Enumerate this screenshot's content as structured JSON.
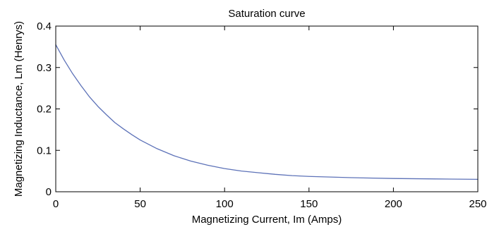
{
  "chart_data": {
    "type": "line",
    "title": "Saturation curve",
    "xlabel": "Magnetizing Current, Im (Amps)",
    "ylabel": "Magnetizing Inductance, Lm (Henrys)",
    "xlim": [
      0,
      250
    ],
    "ylim": [
      0,
      0.4
    ],
    "xticks": [
      0,
      50,
      100,
      150,
      200,
      250
    ],
    "xtick_labels": [
      "0",
      "50",
      "100",
      "150",
      "200",
      "250"
    ],
    "yticks": [
      0,
      0.1,
      0.2,
      0.3,
      0.4
    ],
    "ytick_labels": [
      "0",
      "0.1",
      "0.2",
      "0.3",
      "0.4"
    ],
    "grid": false,
    "box": true,
    "series": [
      {
        "color": "#5d72b8",
        "x": [
          0,
          5,
          10,
          15,
          20,
          25,
          30,
          35,
          40,
          45,
          50,
          60,
          70,
          80,
          90,
          100,
          110,
          120,
          130,
          140,
          150,
          175,
          200,
          225,
          250
        ],
        "y": [
          0.355,
          0.318,
          0.285,
          0.256,
          0.229,
          0.206,
          0.186,
          0.167,
          0.152,
          0.138,
          0.125,
          0.104,
          0.087,
          0.074,
          0.064,
          0.056,
          0.05,
          0.046,
          0.042,
          0.039,
          0.037,
          0.034,
          0.032,
          0.031,
          0.03
        ]
      }
    ]
  }
}
